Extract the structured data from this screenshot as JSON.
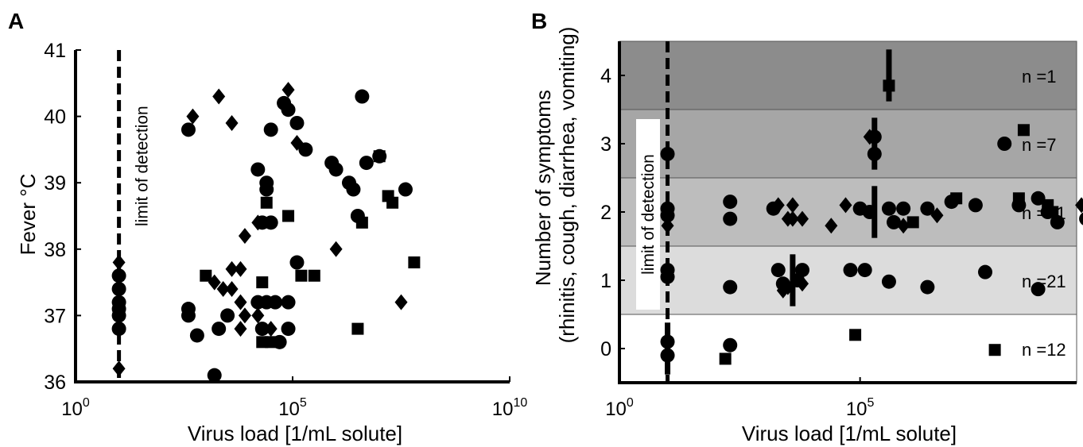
{
  "panels": [
    {
      "letter": "A",
      "tag": "limit of detection"
    },
    {
      "letter": "B",
      "tag": "limit of detection"
    }
  ],
  "chart_data": [
    {
      "type": "scatter",
      "title": "",
      "xlabel": "Virus load [1/mL solute]",
      "ylabel": "Fever °C",
      "x_scale": "log10",
      "xlim": [
        0,
        10
      ],
      "ylim": [
        36,
        41
      ],
      "x_ticks": [
        {
          "v": 0,
          "base": "10",
          "exp": "0"
        },
        {
          "v": 5,
          "base": "10",
          "exp": "5"
        },
        {
          "v": 10,
          "base": "10",
          "exp": "10"
        }
      ],
      "y_ticks": [
        36,
        37,
        38,
        39,
        40,
        41
      ],
      "detection_limit_log10": 1,
      "point_x_units": "log10 virus load",
      "series": [
        {
          "marker": "circle",
          "points": [
            [
              1,
              37.6
            ],
            [
              1,
              37.4
            ],
            [
              1,
              37.2
            ],
            [
              1,
              37.1
            ],
            [
              1,
              37.0
            ],
            [
              1,
              36.8
            ],
            [
              2.6,
              39.8
            ],
            [
              2.6,
              37.1
            ],
            [
              2.6,
              37.0
            ],
            [
              2.8,
              36.7
            ],
            [
              3.2,
              36.1
            ],
            [
              3.3,
              36.8
            ],
            [
              3.5,
              37.0
            ],
            [
              4.2,
              39.2
            ],
            [
              4.3,
              38.4
            ],
            [
              4.4,
              39.0
            ],
            [
              4.4,
              38.9
            ],
            [
              4.5,
              38.4
            ],
            [
              4.5,
              39.8
            ],
            [
              4.2,
              37.2
            ],
            [
              4.4,
              37.2
            ],
            [
              4.6,
              37.2
            ],
            [
              4.3,
              36.8
            ],
            [
              4.7,
              36.6
            ],
            [
              4.8,
              40.2
            ],
            [
              4.9,
              40.1
            ],
            [
              5.1,
              39.9
            ],
            [
              5.3,
              39.5
            ],
            [
              4.9,
              37.2
            ],
            [
              4.9,
              36.8
            ],
            [
              5.9,
              39.3
            ],
            [
              6.0,
              39.2
            ],
            [
              6.3,
              39.0
            ],
            [
              6.4,
              38.9
            ],
            [
              5.1,
              37.8
            ],
            [
              6.6,
              40.3
            ],
            [
              6.7,
              39.3
            ],
            [
              7.0,
              39.4
            ],
            [
              6.5,
              38.5
            ],
            [
              7.6,
              38.9
            ]
          ]
        },
        {
          "marker": "diamond",
          "points": [
            [
              1,
              37.8
            ],
            [
              1,
              36.2
            ],
            [
              2.7,
              40.0
            ],
            [
              3.3,
              40.3
            ],
            [
              3.6,
              39.9
            ],
            [
              3.2,
              37.5
            ],
            [
              3.4,
              37.4
            ],
            [
              3.6,
              37.7
            ],
            [
              3.8,
              37.7
            ],
            [
              3.6,
              37.4
            ],
            [
              3.8,
              37.2
            ],
            [
              3.9,
              37.0
            ],
            [
              3.8,
              36.8
            ],
            [
              4.2,
              37.0
            ],
            [
              4.5,
              36.8
            ],
            [
              3.9,
              38.2
            ],
            [
              4.2,
              38.4
            ],
            [
              4.9,
              40.4
            ],
            [
              5.1,
              39.6
            ],
            [
              6.0,
              38.0
            ],
            [
              7.5,
              37.2
            ]
          ]
        },
        {
          "marker": "square",
          "points": [
            [
              3.0,
              37.6
            ],
            [
              4.4,
              38.7
            ],
            [
              4.9,
              38.5
            ],
            [
              4.3,
              37.5
            ],
            [
              4.3,
              36.6
            ],
            [
              4.5,
              36.6
            ],
            [
              5.2,
              37.6
            ],
            [
              5.5,
              37.6
            ],
            [
              6.5,
              36.8
            ],
            [
              6.6,
              38.4
            ],
            [
              7.0,
              39.4
            ],
            [
              7.2,
              38.8
            ],
            [
              7.3,
              38.7
            ],
            [
              7.8,
              37.8
            ]
          ]
        }
      ]
    },
    {
      "type": "scatter",
      "title": "",
      "xlabel": "Virus load [1/mL solute]",
      "ylabel": "Number of symptoms (rhinitis, cough, diarrhea, vomiting)",
      "ylabel_lines": [
        "Number of symptoms",
        "(rhinitis, cough, diarrhea, vomiting)"
      ],
      "x_scale": "log10",
      "xlim": [
        0,
        9.5
      ],
      "ylim": [
        -0.5,
        4.5
      ],
      "x_ticks": [
        {
          "v": 0,
          "base": "10",
          "exp": "0"
        },
        {
          "v": 5,
          "base": "10",
          "exp": "5"
        }
      ],
      "y_ticks": [
        0,
        1,
        2,
        3,
        4
      ],
      "detection_limit_log10": 1,
      "point_x_units": "log10 virus load",
      "bands": [
        {
          "level": 4,
          "label": "n =1",
          "color": "#8c8c8c"
        },
        {
          "level": 3,
          "label": "n =7",
          "color": "#a6a6a6"
        },
        {
          "level": 2,
          "label": "n =41",
          "color": "#bdbdbd"
        },
        {
          "level": 1,
          "label": "n =21",
          "color": "#dcdcdc"
        },
        {
          "level": 0,
          "label": "n =12",
          "color": "#ffffff"
        }
      ],
      "median_bars": [
        {
          "level": 4,
          "x": 5.6
        },
        {
          "level": 3,
          "x": 5.3
        },
        {
          "level": 2,
          "x": 5.3
        },
        {
          "level": 1,
          "x": 3.6
        },
        {
          "level": 0,
          "x": 1.0
        }
      ],
      "series": [
        {
          "marker": "circle",
          "points": [
            [
              1,
              2.85
            ],
            [
              1,
              2.05
            ],
            [
              1,
              1.95
            ],
            [
              1,
              1.15
            ],
            [
              1,
              1.05
            ],
            [
              1,
              0.1
            ],
            [
              1,
              -0.1
            ],
            [
              2.3,
              0.05
            ],
            [
              5.3,
              2.85
            ],
            [
              5.3,
              3.1
            ],
            [
              8.0,
              3.0
            ],
            [
              2.3,
              2.15
            ],
            [
              2.3,
              1.9
            ],
            [
              3.2,
              2.05
            ],
            [
              5.0,
              2.05
            ],
            [
              5.2,
              2.0
            ],
            [
              5.6,
              2.05
            ],
            [
              5.7,
              1.85
            ],
            [
              5.9,
              2.05
            ],
            [
              6.4,
              2.05
            ],
            [
              6.9,
              2.15
            ],
            [
              7.4,
              2.1
            ],
            [
              8.3,
              2.1
            ],
            [
              8.7,
              2.2
            ],
            [
              8.9,
              2.0
            ],
            [
              9.1,
              1.85
            ],
            [
              9.7,
              1.9
            ],
            [
              2.3,
              0.9
            ],
            [
              3.3,
              1.15
            ],
            [
              3.4,
              0.95
            ],
            [
              3.7,
              1.0
            ],
            [
              3.8,
              1.15
            ],
            [
              4.8,
              1.15
            ],
            [
              5.1,
              1.15
            ],
            [
              5.6,
              0.98
            ],
            [
              6.4,
              0.9
            ],
            [
              7.6,
              1.12
            ],
            [
              8.7,
              0.87
            ]
          ]
        },
        {
          "marker": "diamond",
          "points": [
            [
              1,
              1.8
            ],
            [
              3.3,
              2.1
            ],
            [
              3.5,
              1.9
            ],
            [
              3.6,
              1.9
            ],
            [
              3.8,
              1.9
            ],
            [
              3.6,
              2.1
            ],
            [
              4.4,
              1.8
            ],
            [
              4.7,
              2.1
            ],
            [
              5.9,
              1.8
            ],
            [
              6.6,
              1.95
            ],
            [
              9.6,
              2.1
            ],
            [
              5.2,
              3.1
            ],
            [
              3.4,
              0.85
            ],
            [
              3.5,
              0.9
            ],
            [
              3.8,
              0.95
            ]
          ]
        },
        {
          "marker": "square",
          "points": [
            [
              5.6,
              3.85
            ],
            [
              8.4,
              3.2
            ],
            [
              2.2,
              -0.15
            ],
            [
              4.9,
              0.2
            ],
            [
              7.8,
              -0.02
            ],
            [
              6.1,
              1.85
            ],
            [
              7.0,
              2.2
            ],
            [
              8.3,
              2.2
            ],
            [
              8.9,
              2.1
            ],
            [
              9.0,
              2.0
            ]
          ]
        }
      ]
    }
  ]
}
